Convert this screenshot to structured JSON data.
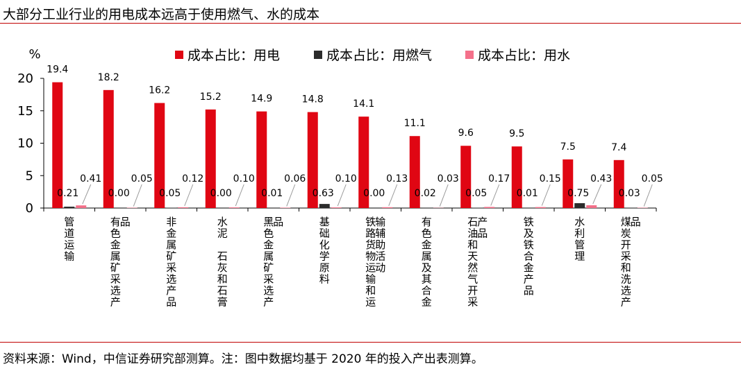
{
  "header": {
    "title": "大部分工业行业的用电成本远高于使用燃气、水的成本"
  },
  "footer": {
    "source": "资料来源：Wind，中信证券研究部测算。注：图中数据均基于 2020 年的投入产出表测算。"
  },
  "chart_data": {
    "type": "bar",
    "ylabel": "%",
    "ylim": [
      0,
      20
    ],
    "yticks": [
      "0",
      "5",
      "10",
      "15",
      "20"
    ],
    "legend_position": "top",
    "categories": [
      "管道运输",
      "有色金属矿采选产品",
      "非金属矿采选产品",
      "水泥　石灰和石膏",
      "黑色金属矿采选产品",
      "基础化学原料",
      "铁路货物运输和运输辅助活动",
      "有色金属及其合金",
      "石油和天然气开采产品",
      "铁及铁合金产品",
      "水利管理",
      "煤炭开采和洗选产品"
    ],
    "series": [
      {
        "name": "成本占比：用电",
        "color": "#e00613",
        "values": [
          19.4,
          18.2,
          16.2,
          15.2,
          14.9,
          14.8,
          14.1,
          11.1,
          9.6,
          9.5,
          7.5,
          7.4
        ],
        "labels": [
          "19.4",
          "18.2",
          "16.2",
          "15.2",
          "14.9",
          "14.8",
          "14.1",
          "11.1",
          "9.6",
          "9.5",
          "7.5",
          "7.4"
        ]
      },
      {
        "name": "成本占比：用燃气",
        "color": "#2b2b2b",
        "values": [
          0.21,
          0.0,
          0.05,
          0.0,
          0.01,
          0.63,
          0.0,
          0.02,
          0.05,
          0.01,
          0.75,
          0.03
        ],
        "labels": [
          "0.21",
          "0.00",
          "0.05",
          "0.00",
          "0.01",
          "0.63",
          "0.00",
          "0.02",
          "0.05",
          "0.01",
          "0.75",
          "0.03"
        ]
      },
      {
        "name": "成本占比：用水",
        "color": "#f4708a",
        "values": [
          0.41,
          0.05,
          0.12,
          0.1,
          0.06,
          0.1,
          0.13,
          0.03,
          0.17,
          0.15,
          0.43,
          0.05
        ],
        "labels": [
          "0.41",
          "0.05",
          "0.12",
          "0.10",
          "0.06",
          "0.10",
          "0.13",
          "0.03",
          "0.17",
          "0.15",
          "0.43",
          "0.05"
        ]
      }
    ]
  }
}
